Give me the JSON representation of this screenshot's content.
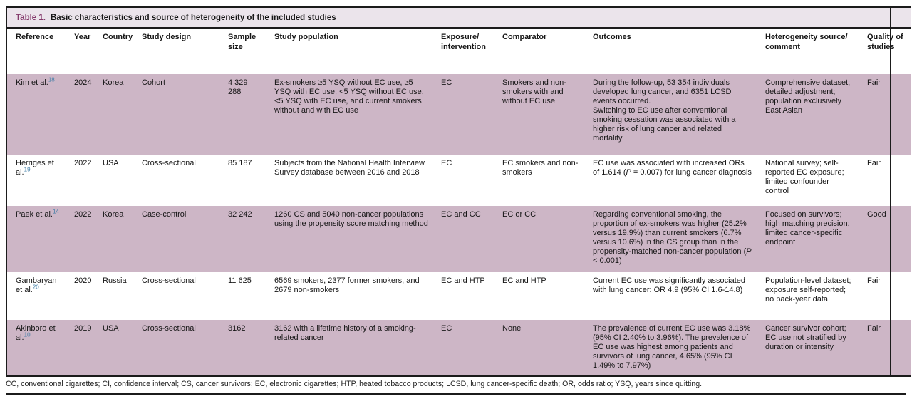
{
  "colors": {
    "title_accent": "#84396B",
    "title_bar_background": "#EBE4EB",
    "row_stripe": "#CDB6C6",
    "citation_blue": "#3E7CA6",
    "rule_black": "#1b1b1b"
  },
  "table": {
    "title_label": "Table 1.",
    "title_text": "Basic characteristics and source of heterogeneity of the included studies",
    "columns": [
      {
        "key": "reference",
        "label": "Reference"
      },
      {
        "key": "year",
        "label": "Year"
      },
      {
        "key": "country",
        "label": "Country"
      },
      {
        "key": "design",
        "label": "Study design"
      },
      {
        "key": "sample_size",
        "label": "Sample size"
      },
      {
        "key": "population",
        "label": "Study population"
      },
      {
        "key": "exposure",
        "label": "Exposure/\nintervention"
      },
      {
        "key": "comparator",
        "label": "Comparator"
      },
      {
        "key": "outcomes",
        "label": "Outcomes"
      },
      {
        "key": "heterogeneity",
        "label": "Heterogeneity source/\ncomment"
      },
      {
        "key": "quality",
        "label": "Quality of studies"
      }
    ],
    "rows": [
      {
        "reference": {
          "text": "Kim et al.",
          "sup": "18"
        },
        "year": "2024",
        "country": "Korea",
        "design": "Cohort",
        "sample_size": "4 329 288",
        "population": "Ex-smokers ≥5 YSQ without EC use, ≥5 YSQ with EC use, <5 YSQ without EC use, <5 YSQ with EC use, and current smokers without and with EC use",
        "exposure": "EC",
        "comparator": "Smokers and non-smokers with and without EC use",
        "outcomes": [
          {
            "text": "During the follow-up, 53 354 individuals developed lung cancer, and 6351 LCSD events occurred.\nSwitching to EC use after conventional smoking cessation was associated with a higher risk of lung cancer and related mortality"
          }
        ],
        "heterogeneity": "Comprehensive dataset; detailed adjustment; population exclusively East Asian",
        "quality": "Fair"
      },
      {
        "reference": {
          "text": "Herriges et al.",
          "sup": "19"
        },
        "year": "2022",
        "country": "USA",
        "design": "Cross-sectional",
        "sample_size": "85 187",
        "population": "Subjects from the National Health Interview Survey database between 2016 and 2018",
        "exposure": "EC",
        "comparator": "EC smokers and non-smokers",
        "outcomes": [
          {
            "text": "EC use was associated with increased ORs of 1.614 ("
          },
          {
            "text": "P",
            "italic": true
          },
          {
            "text": " = 0.007) for lung cancer diagnosis"
          }
        ],
        "heterogeneity": "National survey; self-reported EC exposure; limited confounder control",
        "quality": "Fair"
      },
      {
        "reference": {
          "text": "Paek et al.",
          "sup": "14"
        },
        "year": "2022",
        "country": "Korea",
        "design": "Case-control",
        "sample_size": "32 242",
        "population": "1260 CS and 5040 non-cancer populations using the propensity score matching method",
        "exposure": "EC and CC",
        "comparator": "EC or CC",
        "outcomes": [
          {
            "text": "Regarding conventional smoking, the proportion of ex-smokers was higher (25.2% versus 19.9%) than current smokers (6.7% versus 10.6%) in the CS group than in the propensity-matched non-cancer population ("
          },
          {
            "text": "P",
            "italic": true
          },
          {
            "text": " < 0.001)"
          }
        ],
        "heterogeneity": "Focused on survivors; high matching precision; limited cancer-specific endpoint",
        "quality": "Good"
      },
      {
        "reference": {
          "text": "Gambaryan et al.",
          "sup": "20"
        },
        "year": "2020",
        "country": "Russia",
        "design": "Cross-sectional",
        "sample_size": "11 625",
        "population": "6569 smokers, 2377 former smokers, and 2679 non-smokers",
        "exposure": "EC and HTP",
        "comparator": "EC and HTP",
        "outcomes": [
          {
            "text": "Current EC use was significantly associated with lung cancer: OR 4.9 (95% CI 1.6-14.8)"
          }
        ],
        "heterogeneity": "Population-level dataset; exposure self-reported; no pack-year data",
        "quality": "Fair"
      },
      {
        "reference": {
          "text": "Akinboro et al.",
          "sup": "10"
        },
        "year": "2019",
        "country": "USA",
        "design": "Cross-sectional",
        "sample_size": "3162",
        "population": "3162 with a lifetime history of a smoking-related cancer",
        "exposure": "EC",
        "comparator": "None",
        "outcomes": [
          {
            "text": "The prevalence of current EC use was 3.18% (95% CI 2.40% to 3.96%). The prevalence of EC use was highest among patients and survivors of lung cancer, 4.65% (95% CI 1.49% to 7.97%)"
          }
        ],
        "heterogeneity": "Cancer survivor cohort; EC use not stratified by duration or intensity",
        "quality": "Fair"
      }
    ],
    "footnote": "CC, conventional cigarettes; CI, confidence interval; CS, cancer survivors; EC, electronic cigarettes; HTP, heated tobacco products; LCSD, lung cancer-specific death; OR, odds ratio; YSQ, years since quitting."
  }
}
